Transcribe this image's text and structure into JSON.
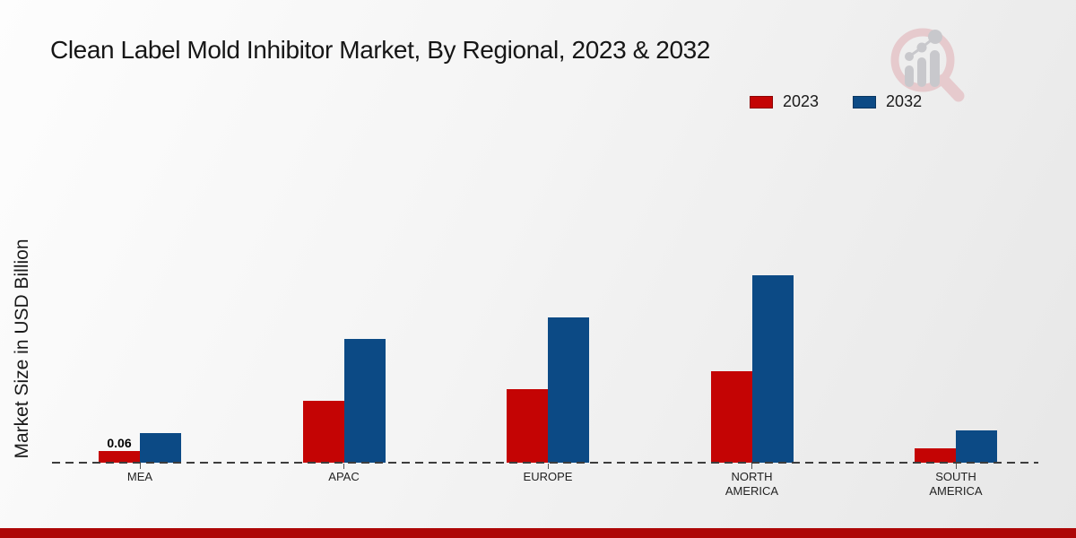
{
  "title": "Clean Label Mold Inhibitor Market, By Regional, 2023 & 2032",
  "y_axis_label": "Market Size in USD Billion",
  "watermark_icon": "magnifier-bar-chart-logo",
  "footer_bar": {
    "color": "#ad0707"
  },
  "chart_data": {
    "type": "bar",
    "title": "Clean Label Mold Inhibitor Market, By Regional, 2023 & 2032",
    "xlabel": "",
    "ylabel": "Market Size in USD Billion",
    "categories": [
      "MEA",
      "APAC",
      "EUROPE",
      "NORTH AMERICA",
      "SOUTH AMERICA"
    ],
    "series": [
      {
        "name": "2023",
        "color": "#c40404",
        "values": [
          0.06,
          0.31,
          0.37,
          0.46,
          0.07
        ]
      },
      {
        "name": "2032",
        "color": "#0c4a85",
        "values": [
          0.15,
          0.62,
          0.73,
          0.94,
          0.16
        ]
      }
    ],
    "annotations": [
      {
        "text": "0.06",
        "series_index": 0,
        "category_index": 0
      }
    ],
    "ylim": [
      0,
      1.0
    ],
    "grid": false,
    "baseline_style": "dashed",
    "legend_position": "top-right",
    "axis_values_shown": false
  }
}
